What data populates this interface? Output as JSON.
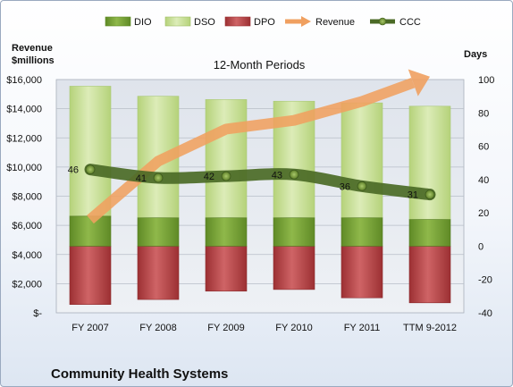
{
  "chart_data": {
    "type": "bar",
    "title": "12-Month Periods",
    "company": "Community Health Systems",
    "left_axis_label": [
      "Revenue",
      "$millions"
    ],
    "right_axis_label": "Days",
    "categories": [
      "FY 2007",
      "FY 2008",
      "FY 2009",
      "FY 2010",
      "FY 2011",
      "TTM 9-2012"
    ],
    "left_axis": {
      "min": 0,
      "max": 16000,
      "step": 2000,
      "tick_labels": [
        "$-",
        "$2,000",
        "$4,000",
        "$6,000",
        "$8,000",
        "$10,000",
        "$12,000",
        "$14,000",
        "$16,000"
      ]
    },
    "right_axis": {
      "min": -40,
      "max": 100,
      "step": 20,
      "tick_labels": [
        "-40",
        "-20",
        "0",
        "20",
        "40",
        "60",
        "80",
        "100"
      ]
    },
    "legend": {
      "position": "top",
      "entries": [
        "DIO",
        "DSO",
        "DPO",
        "Revenue",
        "CCC"
      ]
    },
    "colors": {
      "DIO": "#77a035",
      "DSO": "#c5de92",
      "DPO": "#b84547",
      "Revenue": "#f0a060",
      "CCC": "#4b6a26"
    },
    "series": [
      {
        "name": "DIO",
        "axis": "right",
        "values": [
          18,
          17,
          17,
          17,
          17,
          16
        ]
      },
      {
        "name": "DSO",
        "axis": "right",
        "values": [
          78,
          73,
          71,
          70,
          69,
          68
        ]
      },
      {
        "name": "DPO",
        "axis": "right",
        "values": [
          -35,
          -32,
          -27,
          -26,
          -31,
          -34
        ]
      },
      {
        "name": "Revenue",
        "axis": "left",
        "values": [
          6400,
          10400,
          12600,
          13200,
          14500,
          16200
        ]
      },
      {
        "name": "CCC",
        "axis": "right",
        "values": [
          46,
          41,
          42,
          43,
          36,
          31
        ]
      }
    ],
    "data_labels": [
      "46",
      "41",
      "42",
      "43",
      "36",
      "31"
    ],
    "grid": true
  }
}
